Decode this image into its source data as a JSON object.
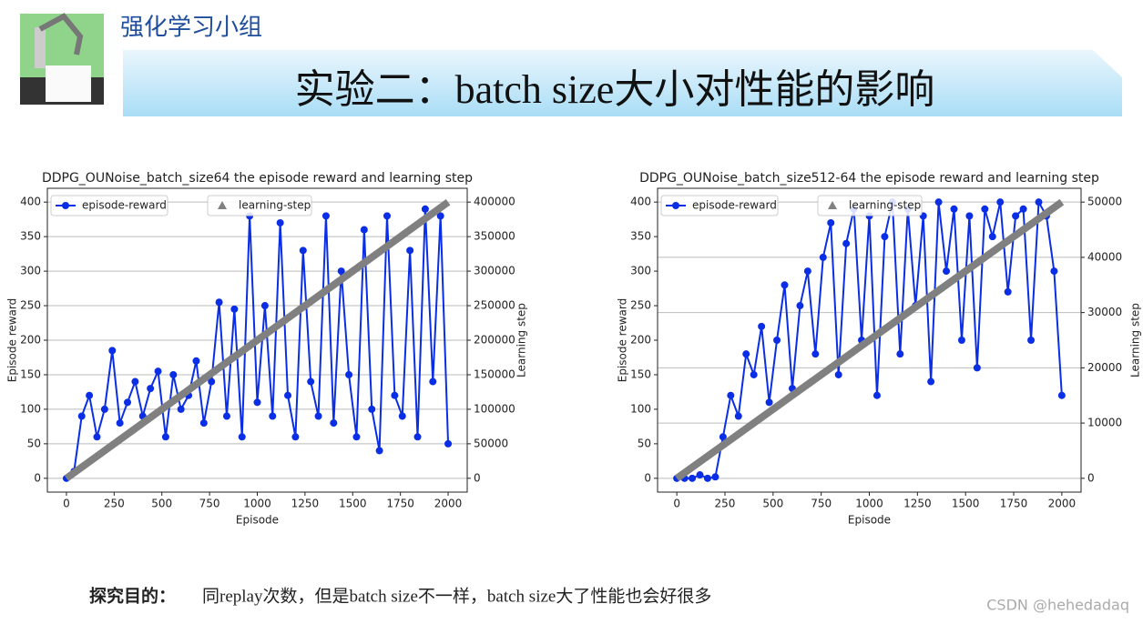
{
  "header": {
    "group": "强化学习小组",
    "title": "实验二：batch size大小对性能的影响"
  },
  "chart_data": [
    {
      "type": "line",
      "title": "DDPG_OUNoise_batch_size64 the episode reward and learning step",
      "xlabel": "Episode",
      "ylabel": "Episode reward",
      "y2label": "Learning step",
      "xlim": [
        -100,
        2100
      ],
      "xticks": [
        0,
        250,
        500,
        750,
        1000,
        1250,
        1500,
        1750,
        2000
      ],
      "ylim": [
        -20,
        420
      ],
      "yticks": [
        0,
        50,
        100,
        150,
        200,
        250,
        300,
        350,
        400
      ],
      "y2lim": [
        -20000,
        420000
      ],
      "y2ticks": [
        0,
        50000,
        100000,
        150000,
        200000,
        250000,
        300000,
        350000,
        400000
      ],
      "grid": true,
      "series": [
        {
          "name": "episode-reward",
          "color": "#0a2ee6",
          "x": [
            0,
            40,
            80,
            120,
            160,
            200,
            240,
            280,
            320,
            360,
            400,
            440,
            480,
            520,
            560,
            600,
            640,
            680,
            720,
            760,
            800,
            840,
            880,
            920,
            960,
            1000,
            1040,
            1080,
            1120,
            1160,
            1200,
            1240,
            1280,
            1320,
            1360,
            1400,
            1440,
            1480,
            1520,
            1560,
            1600,
            1640,
            1680,
            1720,
            1760,
            1800,
            1840,
            1880,
            1920,
            1960,
            2000
          ],
          "values": [
            0,
            10,
            90,
            120,
            60,
            100,
            185,
            80,
            110,
            140,
            90,
            130,
            155,
            60,
            150,
            100,
            120,
            170,
            80,
            140,
            255,
            90,
            245,
            60,
            380,
            110,
            250,
            90,
            370,
            120,
            60,
            330,
            140,
            90,
            380,
            80,
            300,
            150,
            60,
            360,
            100,
            40,
            380,
            120,
            90,
            330,
            60,
            390,
            140,
            380,
            50
          ]
        },
        {
          "name": "learning-step",
          "color": "#808080",
          "axis": "y2",
          "x": [
            0,
            2000
          ],
          "values": [
            0,
            400000
          ]
        }
      ]
    },
    {
      "type": "line",
      "title": "DDPG_OUNoise_batch_size512-64 the episode reward and learning step",
      "xlabel": "Episode",
      "ylabel": "Episode reward",
      "y2label": "Learning step",
      "xlim": [
        -100,
        2100
      ],
      "xticks": [
        0,
        250,
        500,
        750,
        1000,
        1250,
        1500,
        1750,
        2000
      ],
      "ylim": [
        -20,
        420
      ],
      "yticks": [
        0,
        50,
        100,
        150,
        200,
        250,
        300,
        350,
        400
      ],
      "y2lim": [
        -2500,
        52500
      ],
      "y2ticks": [
        0,
        10000,
        20000,
        30000,
        40000,
        50000
      ],
      "grid": true,
      "series": [
        {
          "name": "episode-reward",
          "color": "#0a2ee6",
          "x": [
            0,
            40,
            80,
            120,
            160,
            200,
            240,
            280,
            320,
            360,
            400,
            440,
            480,
            520,
            560,
            600,
            640,
            680,
            720,
            760,
            800,
            840,
            880,
            920,
            960,
            1000,
            1040,
            1080,
            1120,
            1160,
            1200,
            1240,
            1280,
            1320,
            1360,
            1400,
            1440,
            1480,
            1520,
            1560,
            1600,
            1640,
            1680,
            1720,
            1760,
            1800,
            1840,
            1880,
            1920,
            1960,
            2000
          ],
          "values": [
            0,
            0,
            0,
            5,
            0,
            2,
            60,
            120,
            90,
            180,
            150,
            220,
            110,
            200,
            280,
            130,
            250,
            300,
            180,
            320,
            370,
            150,
            340,
            390,
            200,
            380,
            120,
            350,
            400,
            180,
            390,
            250,
            380,
            140,
            400,
            300,
            390,
            200,
            380,
            160,
            390,
            350,
            400,
            270,
            380,
            390,
            200,
            400,
            380,
            300,
            120
          ]
        },
        {
          "name": "learning-step",
          "color": "#808080",
          "axis": "y2",
          "x": [
            0,
            2000
          ],
          "values": [
            0,
            50000
          ]
        }
      ]
    }
  ],
  "footer": {
    "label": "探究目的：",
    "text": "同replay次数，但是batch size不一样，batch size大了性能也会好很多",
    "watermark": "CSDN @hehedadaq"
  }
}
